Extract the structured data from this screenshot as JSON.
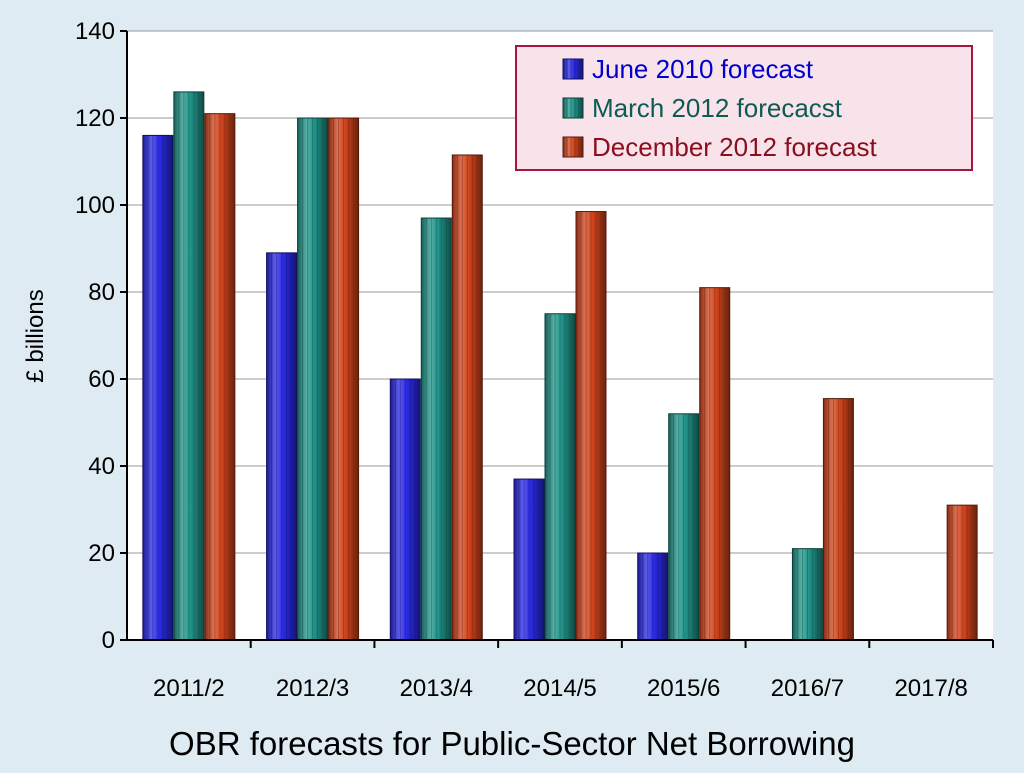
{
  "chart_data": {
    "type": "bar",
    "title": "OBR forecasts for Public-Sector Net Borrowing",
    "ylabel": "£ billions",
    "xlabel": "",
    "ylim": [
      0,
      140
    ],
    "yticks": [
      0,
      20,
      40,
      60,
      80,
      100,
      120,
      140
    ],
    "grid": true,
    "legend_position": "top-right",
    "categories": [
      "2011/2",
      "2012/3",
      "2013/4",
      "2014/5",
      "2015/6",
      "2016/7",
      "2017/8"
    ],
    "series": [
      {
        "name": "June 2010 forecast",
        "color": "#2a2ae6",
        "text_color": "#0000cc",
        "values": [
          116,
          89,
          60,
          37,
          20,
          null,
          null
        ]
      },
      {
        "name": "March 2012 forecacst",
        "color": "#20958a",
        "text_color": "#0e5a55",
        "values": [
          126,
          120,
          97,
          75,
          52,
          21,
          null
        ]
      },
      {
        "name": "December 2012 forecast",
        "color": "#d2441c",
        "text_color": "#8a0e1e",
        "values": [
          121,
          120,
          111.5,
          98.5,
          81,
          55.5,
          31
        ]
      }
    ]
  }
}
